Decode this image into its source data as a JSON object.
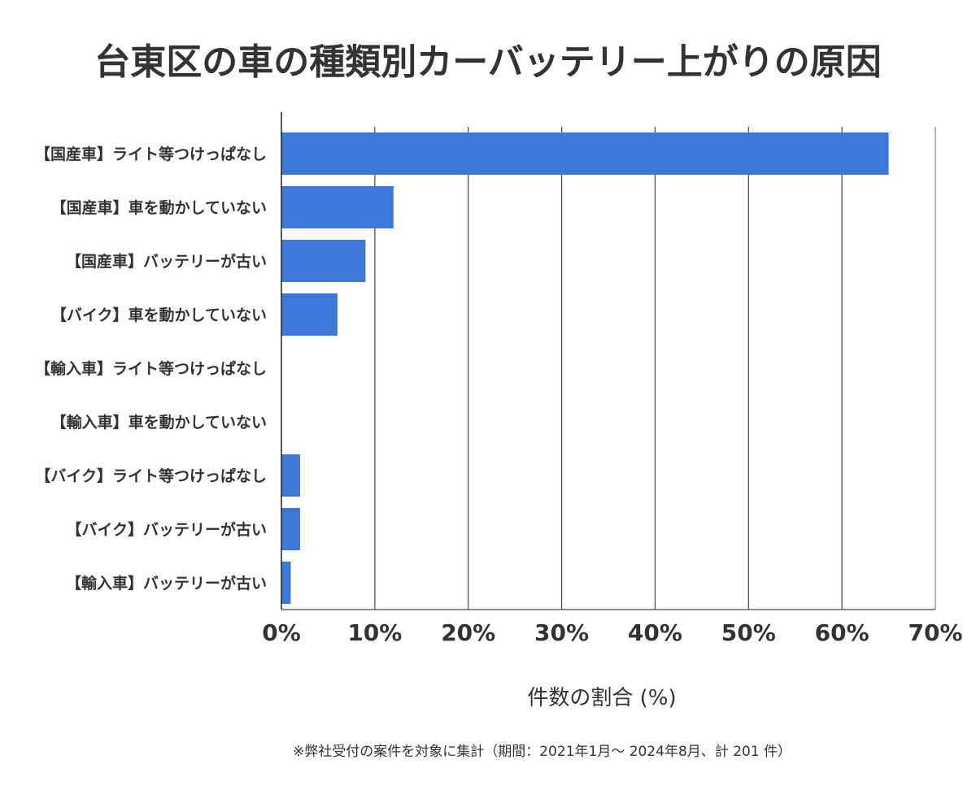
{
  "chart_data": {
    "type": "bar",
    "orientation": "horizontal",
    "title": "台東区の車の種類別カーバッテリー上がりの原因",
    "xlabel": "件数の割合 (%)",
    "ylabel": "",
    "categories": [
      "【国産車】ライト等つけっぱなし",
      "【国産車】車を動かしていない",
      "【国産車】バッテリーが古い",
      "【バイク】車を動かしていない",
      "【輸入車】ライト等つけっぱなし",
      "【輸入車】車を動かしていない",
      "【バイク】ライト等つけっぱなし",
      "【バイク】バッテリーが古い",
      "【輸入車】バッテリーが古い"
    ],
    "values": [
      65.0,
      12.0,
      9.0,
      6.0,
      0,
      0,
      2.0,
      2.0,
      1.0
    ],
    "xlim": [
      0,
      70
    ],
    "xticks": [
      "0%",
      "10%",
      "20%",
      "30%",
      "40%",
      "50%",
      "60%",
      "70%"
    ],
    "grid": true,
    "bar_color": "#3c78d8",
    "note": "※弊社受付の案件を対象に集計（期間：2021年1月～ 2024年8月、計 201 件）"
  }
}
